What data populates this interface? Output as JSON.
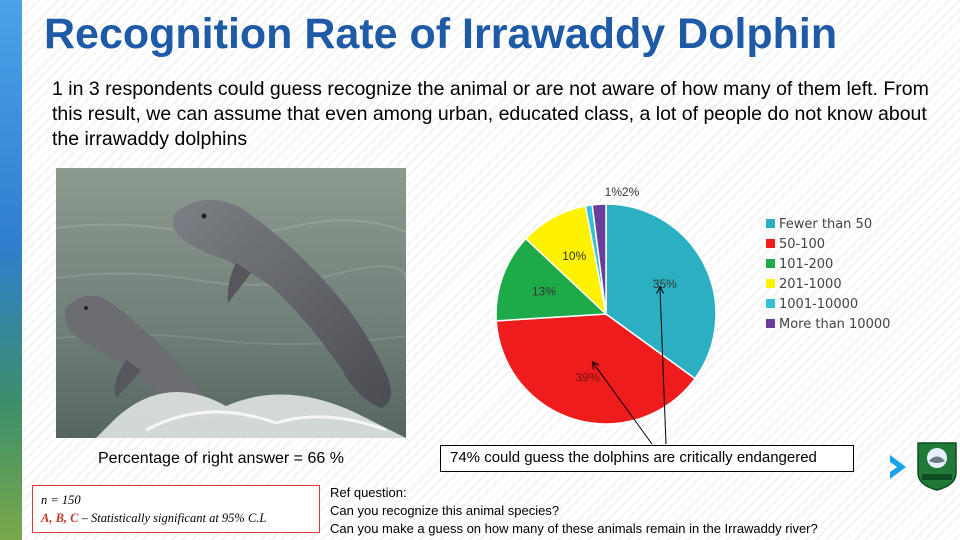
{
  "title": "Recognition Rate of Irrawaddy Dolphin",
  "intro": "1 in 3 respondents could guess recognize the animal or are not aware of how many of them left. From this result, we can assume that even among urban, educated class, a lot of people do not know about the irrawaddy dolphins",
  "photo_caption": "Percentage of right answer = 66 %",
  "callout": "74% could guess the dolphins are critically endangered",
  "stats": {
    "n": "n = 150",
    "letters": "A, B, C",
    "significance": " – Statistically significant at 95% C.L"
  },
  "ref": {
    "heading": "Ref question:",
    "q1": "Can you recognize this animal species?",
    "q2": "Can you make a guess on how many of these animals remain in the Irrawaddy river?"
  },
  "chart_data": {
    "type": "pie",
    "title": "",
    "legend_position": "right",
    "slices": [
      {
        "name": "Fewer than 50",
        "value": 35,
        "label": "35%",
        "color": "#2ab0c0"
      },
      {
        "name": "50-100",
        "value": 39,
        "label": "39%",
        "color": "#ee1c1c"
      },
      {
        "name": "101-200",
        "value": 13,
        "label": "13%",
        "color": "#1faa4a"
      },
      {
        "name": "201-1000",
        "value": 10,
        "label": "10%",
        "color": "#fff200"
      },
      {
        "name": "1001-10000",
        "value": 1,
        "label": "1%",
        "color": "#35c0d6"
      },
      {
        "name": "More than 10000",
        "value": 2,
        "label": "2%",
        "color": "#6a3d9a"
      }
    ]
  },
  "colors": {
    "title": "#1f5aa6",
    "accent_arrow": "#1aa3e8",
    "stats_border": "#d93a3a"
  },
  "icons": {
    "next": "chevron-right-icon",
    "logo": "organization-logo"
  }
}
